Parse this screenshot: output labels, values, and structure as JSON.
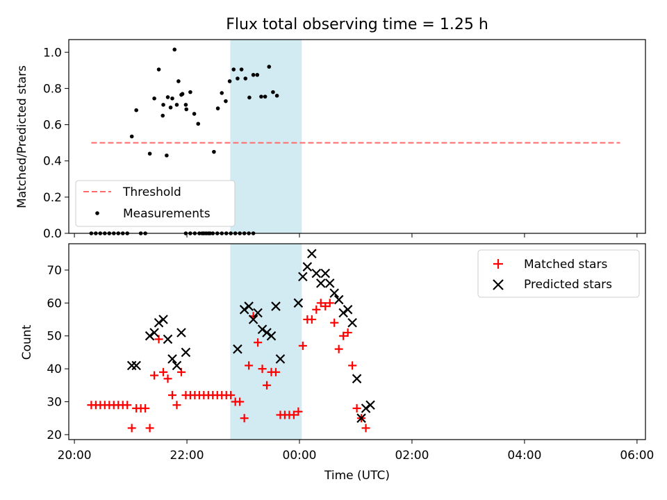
{
  "figure_title": "Flux total observing time = 1.25 h",
  "chart_data": [
    {
      "type": "scatter",
      "ylabel": "Matched/Predicted stars",
      "ylim": [
        0,
        1.07
      ],
      "yticks": [
        0.0,
        0.2,
        0.4,
        0.6,
        0.8,
        1.0
      ],
      "ytick_labels": [
        "0.0",
        "0.2",
        "0.4",
        "0.6",
        "0.8",
        "1.0"
      ],
      "x_unit": "hours since 00:00 UTC",
      "xlim": [
        -4.1,
        6.15
      ],
      "shaded_interval": {
        "x": [
          -1.23,
          0.04
        ],
        "color": "#add8e6"
      },
      "threshold": {
        "name": "Threshold",
        "y": 0.5,
        "x": [
          -3.7,
          5.7
        ],
        "color": "#ff6b6b"
      },
      "legend": {
        "position": "lower left",
        "entries": [
          "Threshold",
          "Measurements"
        ]
      },
      "series": [
        {
          "name": "Measurements",
          "color": "#000000",
          "points": [
            [
              -3.7,
              0
            ],
            [
              -3.62,
              0
            ],
            [
              -3.54,
              0
            ],
            [
              -3.46,
              0
            ],
            [
              -3.38,
              0
            ],
            [
              -3.3,
              0
            ],
            [
              -3.22,
              0
            ],
            [
              -3.14,
              0
            ],
            [
              -3.06,
              0
            ],
            [
              -2.98,
              0.535
            ],
            [
              -2.9,
              0.68
            ],
            [
              -2.82,
              0
            ],
            [
              -2.74,
              0
            ],
            [
              -2.66,
              0.44
            ],
            [
              -2.58,
              0.745
            ],
            [
              -2.5,
              0.905
            ],
            [
              -2.42,
              0.71
            ],
            [
              -2.34,
              0.752
            ],
            [
              -2.26,
              0.745
            ],
            [
              -2.18,
              0.71
            ],
            [
              -2.1,
              0.765
            ],
            [
              -2.02,
              0.71
            ],
            [
              -1.94,
              0
            ],
            [
              -1.86,
              0
            ],
            [
              -1.78,
              0
            ],
            [
              -1.7,
              0
            ],
            [
              -1.62,
              0
            ],
            [
              -1.54,
              0
            ],
            [
              -1.46,
              0
            ],
            [
              -1.38,
              0
            ],
            [
              -2.02,
              0
            ],
            [
              -1.3,
              0
            ],
            [
              -1.22,
              0
            ],
            [
              -1.14,
              0
            ],
            [
              -1.06,
              0
            ],
            [
              -0.98,
              0
            ],
            [
              -0.9,
              0
            ],
            [
              -0.82,
              0
            ],
            [
              -2.43,
              0.65
            ],
            [
              -2.36,
              0.43
            ],
            [
              -2.29,
              0.695
            ],
            [
              -2.22,
              1.015
            ],
            [
              -2.15,
              0.84
            ],
            [
              -2.08,
              0.77
            ],
            [
              -2.01,
              0.685
            ],
            [
              -1.94,
              0.78
            ],
            [
              -1.87,
              0.66
            ],
            [
              -1.8,
              0.605
            ],
            [
              -1.73,
              0
            ],
            [
              -1.66,
              0
            ],
            [
              -1.59,
              0
            ],
            [
              -1.52,
              0.45
            ],
            [
              -1.45,
              0.69
            ],
            [
              -1.38,
              0.775
            ],
            [
              -1.31,
              0.73
            ],
            [
              -1.24,
              0.84
            ],
            [
              -1.17,
              0.905
            ],
            [
              -1.1,
              0.855
            ],
            [
              -1.03,
              0.905
            ],
            [
              -0.96,
              0.855
            ],
            [
              -0.89,
              0.75
            ],
            [
              -0.82,
              0.875
            ],
            [
              -0.75,
              0.875
            ],
            [
              -0.68,
              0.755
            ],
            [
              -0.61,
              0.755
            ],
            [
              -0.54,
              0.92
            ],
            [
              -0.47,
              0.78
            ],
            [
              -0.4,
              0.76
            ]
          ]
        }
      ]
    },
    {
      "type": "scatter",
      "ylabel": "Count",
      "xlabel": "Time (UTC)",
      "ylim": [
        18.5,
        78
      ],
      "yticks": [
        20,
        30,
        40,
        50,
        60,
        70
      ],
      "ytick_labels": [
        "20",
        "30",
        "40",
        "50",
        "60",
        "70"
      ],
      "xlim": [
        -4.1,
        6.15
      ],
      "xticks": [
        -4,
        -2,
        0,
        2,
        4,
        6
      ],
      "xtick_labels": [
        "20:00",
        "22:00",
        "00:00",
        "02:00",
        "04:00",
        "06:00"
      ],
      "shaded_interval": {
        "x": [
          -1.23,
          0.04
        ],
        "color": "#add8e6"
      },
      "legend": {
        "position": "upper right",
        "entries": [
          "Matched stars",
          "Predicted stars"
        ]
      },
      "series": [
        {
          "name": "Matched stars",
          "marker": "plus",
          "color": "#ff0000",
          "points": [
            [
              -3.7,
              29
            ],
            [
              -3.62,
              29
            ],
            [
              -3.54,
              29
            ],
            [
              -3.46,
              29
            ],
            [
              -3.38,
              29
            ],
            [
              -3.3,
              29
            ],
            [
              -3.22,
              29
            ],
            [
              -3.14,
              29
            ],
            [
              -3.06,
              29
            ],
            [
              -2.98,
              22
            ],
            [
              -2.9,
              28
            ],
            [
              -2.82,
              28
            ],
            [
              -2.74,
              28
            ],
            [
              -2.66,
              22
            ],
            [
              -2.58,
              38
            ],
            [
              -2.5,
              49
            ],
            [
              -2.42,
              39
            ],
            [
              -2.34,
              37
            ],
            [
              -2.26,
              32
            ],
            [
              -2.18,
              29
            ],
            [
              -2.1,
              39
            ],
            [
              -2.02,
              32
            ],
            [
              -1.94,
              32
            ],
            [
              -1.86,
              32
            ],
            [
              -1.78,
              32
            ],
            [
              -1.7,
              32
            ],
            [
              -1.62,
              32
            ],
            [
              -1.54,
              32
            ],
            [
              -1.46,
              32
            ],
            [
              -1.38,
              32
            ],
            [
              -1.3,
              32
            ],
            [
              -1.22,
              32
            ],
            [
              -1.14,
              30
            ],
            [
              -1.06,
              30
            ],
            [
              -0.98,
              25
            ],
            [
              -0.9,
              41
            ],
            [
              -0.82,
              56
            ],
            [
              -0.74,
              48
            ],
            [
              -0.66,
              40
            ],
            [
              -0.58,
              35
            ],
            [
              -0.5,
              39
            ],
            [
              -0.42,
              39
            ],
            [
              -0.34,
              26
            ],
            [
              -0.26,
              26
            ],
            [
              -0.18,
              26
            ],
            [
              -0.1,
              26
            ],
            [
              -0.02,
              27
            ],
            [
              0.06,
              47
            ],
            [
              0.14,
              55
            ],
            [
              0.22,
              55
            ],
            [
              0.3,
              58
            ],
            [
              0.38,
              60
            ],
            [
              0.46,
              59
            ],
            [
              0.54,
              60
            ],
            [
              0.62,
              54
            ],
            [
              0.7,
              46
            ],
            [
              0.78,
              50
            ],
            [
              0.86,
              51
            ],
            [
              0.94,
              41
            ],
            [
              1.02,
              28
            ],
            [
              1.1,
              25
            ],
            [
              1.18,
              22
            ]
          ]
        },
        {
          "name": "Predicted stars",
          "marker": "x",
          "color": "#000000",
          "points": [
            [
              -2.98,
              41
            ],
            [
              -2.9,
              41
            ],
            [
              -2.66,
              50
            ],
            [
              -2.58,
              51
            ],
            [
              -2.5,
              54
            ],
            [
              -2.42,
              55
            ],
            [
              -2.34,
              49
            ],
            [
              -2.26,
              43
            ],
            [
              -2.18,
              41
            ],
            [
              -2.1,
              51
            ],
            [
              -2.02,
              45
            ],
            [
              -1.1,
              46
            ],
            [
              -0.98,
              58
            ],
            [
              -0.9,
              59
            ],
            [
              -0.82,
              55
            ],
            [
              -0.74,
              57
            ],
            [
              -0.66,
              52
            ],
            [
              -0.58,
              51
            ],
            [
              -0.5,
              50
            ],
            [
              -0.42,
              59
            ],
            [
              -0.34,
              43
            ],
            [
              -0.02,
              60
            ],
            [
              0.06,
              68
            ],
            [
              0.14,
              71
            ],
            [
              0.22,
              75
            ],
            [
              0.3,
              69
            ],
            [
              0.38,
              66
            ],
            [
              0.46,
              69
            ],
            [
              0.54,
              66
            ],
            [
              0.62,
              63
            ],
            [
              0.7,
              61
            ],
            [
              0.78,
              57
            ],
            [
              0.86,
              58
            ],
            [
              0.94,
              54
            ],
            [
              1.02,
              37
            ],
            [
              1.1,
              25
            ],
            [
              1.18,
              28
            ],
            [
              1.26,
              29
            ]
          ]
        }
      ]
    }
  ]
}
